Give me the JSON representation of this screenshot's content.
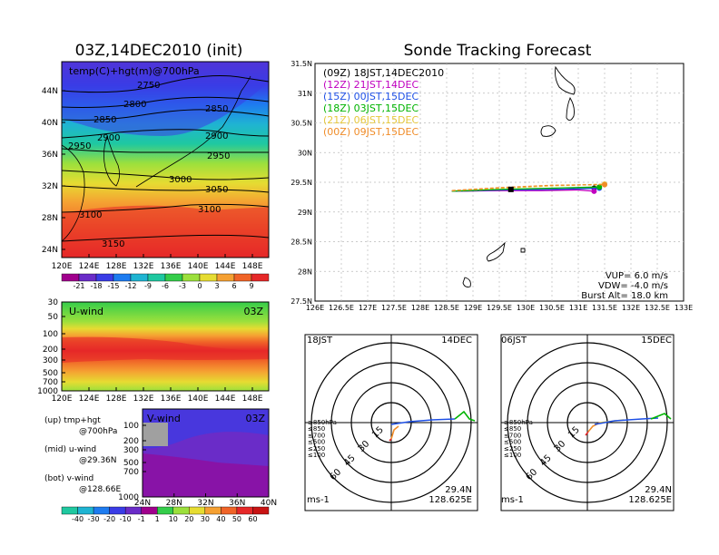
{
  "left": {
    "title": "03Z,14DEC2010 (init)",
    "map": {
      "label": "temp(C)+hgt(m)@700hPa",
      "lat_ticks": [
        "44N",
        "40N",
        "36N",
        "32N",
        "28N",
        "24N"
      ],
      "lon_ticks": [
        "120E",
        "124E",
        "128E",
        "132E",
        "136E",
        "140E",
        "144E",
        "148E"
      ],
      "contour_labels": [
        "2750",
        "2800",
        "2850",
        "2850",
        "2900",
        "2900",
        "2950",
        "2950",
        "3000",
        "3050",
        "3100",
        "3100",
        "3150"
      ],
      "colorbar": [
        "-21",
        "-18",
        "-15",
        "-12",
        "-9",
        "-6",
        "-3",
        "0",
        "3",
        "6",
        "9"
      ],
      "colorbar_colors": [
        "#a0008c",
        "#6a2cc8",
        "#3a3ce6",
        "#1e7cf0",
        "#1fb4d2",
        "#1fc8a0",
        "#34cd4a",
        "#9ce03c",
        "#e6dc32",
        "#f5a032",
        "#f06428",
        "#e62828"
      ]
    },
    "u_wind": {
      "label": "U-wind",
      "time": "03Z",
      "p_ticks": [
        "30",
        "50",
        "100",
        "200",
        "300",
        "500",
        "700",
        "1000"
      ],
      "lon_ticks": [
        "120E",
        "124E",
        "128E",
        "132E",
        "136E",
        "140E",
        "144E",
        "148E"
      ]
    },
    "v_wind": {
      "label": "V-wind",
      "time": "03Z",
      "p_ticks": [
        "100",
        "200",
        "300",
        "500",
        "700",
        "1000"
      ],
      "lat_ticks": [
        "24N",
        "28N",
        "32N",
        "36N",
        "40N"
      ],
      "colorbar": [
        "-40",
        "-30",
        "-20",
        "-10",
        "-1",
        "1",
        "10",
        "20",
        "30",
        "40",
        "50",
        "60"
      ],
      "colorbar_colors": [
        "#1fc8a0",
        "#1fb4d2",
        "#1e7cf0",
        "#3a3ce6",
        "#6a2cc8",
        "#a0008c",
        "#34cd4a",
        "#9ce03c",
        "#e6dc32",
        "#f5a032",
        "#f06428",
        "#e62828",
        "#c81414"
      ]
    },
    "notes": [
      {
        "head": "(up) tmp+hgt",
        "sub": "@700hPa"
      },
      {
        "head": "(mid) u-wind",
        "sub": "@29.36N"
      },
      {
        "head": "(bot) v-wind",
        "sub": "@128.66E"
      }
    ]
  },
  "right": {
    "title": "Sonde Tracking Forecast",
    "lat_ticks": [
      "31.5N",
      "31N",
      "30.5N",
      "30N",
      "29.5N",
      "29N",
      "28.5N",
      "28N",
      "27.5N"
    ],
    "lon_ticks": [
      "126E",
      "126.5E",
      "127E",
      "127.5E",
      "128E",
      "128.5E",
      "129E",
      "129.5E",
      "130E",
      "130.5E",
      "131E",
      "131.5E",
      "132E",
      "132.5E",
      "133E"
    ],
    "legend": [
      {
        "text": "(09Z)  18JST,14DEC2010",
        "color": "#000000"
      },
      {
        "text": "(12Z)  21JST,14DEC",
        "color": "#c000c0"
      },
      {
        "text": "(15Z)  00JST,15DEC",
        "color": "#1e50e6"
      },
      {
        "text": "(18Z)  03JST,15DEC",
        "color": "#00b400"
      },
      {
        "text": "(21Z)  06JST,15DEC",
        "color": "#e6c83c"
      },
      {
        "text": "(00Z)  09JST,15DEC",
        "color": "#f08c28"
      }
    ],
    "params": {
      "vup": "VUP=  6.0  m/s",
      "vdw": "VDW=  -4.0  m/s",
      "burst": "Burst Alt=  18.0  km"
    }
  },
  "chart_data": {
    "type": "line",
    "title": "Sonde Tracking Forecast",
    "xlim": [
      126,
      133
    ],
    "ylim": [
      27.5,
      31.5
    ],
    "series": [
      {
        "name": "(09Z) 18JST,14DEC2010",
        "color": "#000000",
        "x": [
          128.6,
          129.3,
          129.9,
          130.6,
          131.3
        ],
        "y": [
          29.35,
          29.36,
          29.37,
          29.38,
          29.4
        ]
      },
      {
        "name": "(12Z) 21JST,14DEC",
        "color": "#c000c0",
        "x": [
          128.6,
          129.5,
          130.3,
          131.0,
          131.3
        ],
        "y": [
          29.35,
          29.36,
          29.36,
          29.37,
          29.35
        ]
      },
      {
        "name": "(15Z) 00JST,15DEC",
        "color": "#1e50e6",
        "x": [
          128.6,
          129.5,
          130.4,
          131.4
        ],
        "y": [
          29.35,
          29.37,
          29.38,
          29.4
        ]
      },
      {
        "name": "(18Z) 03JST,15DEC",
        "color": "#00b400",
        "x": [
          128.6,
          129.5,
          130.4,
          131.4
        ],
        "y": [
          29.35,
          29.38,
          29.4,
          29.42
        ]
      },
      {
        "name": "(21Z) 06JST,15DEC",
        "color": "#e6c83c",
        "x": [
          128.6,
          129.5,
          130.5,
          131.5
        ],
        "y": [
          29.36,
          29.4,
          29.44,
          29.47
        ]
      },
      {
        "name": "(00Z) 09JST,15DEC",
        "color": "#f08c28",
        "x": [
          128.6,
          129.5,
          130.5,
          131.5
        ],
        "y": [
          29.36,
          29.41,
          29.45,
          29.46
        ]
      }
    ]
  },
  "hodo": [
    {
      "time": "18JST",
      "date": "14DEC",
      "lat": "29.4N",
      "lon": "128.625E",
      "unit": "ms-1",
      "ring_labels": [
        "15",
        "30",
        "45",
        "60"
      ],
      "legend": [
        {
          "text": "≥850hPa",
          "color": "#e62828"
        },
        {
          "text": "≤850",
          "color": "#f08c28"
        },
        {
          "text": "≤700",
          "color": "#e6c83c"
        },
        {
          "text": "≤500",
          "color": "#00b400"
        },
        {
          "text": "≤250",
          "color": "#1fb4d2"
        },
        {
          "text": "≤100",
          "color": "#1e50e6"
        }
      ]
    },
    {
      "time": "06JST",
      "date": "15DEC",
      "lat": "29.4N",
      "lon": "128.625E",
      "unit": "ms-1",
      "ring_labels": [
        "15",
        "30",
        "45",
        "60"
      ],
      "legend": [
        {
          "text": "≥850hPa",
          "color": "#e62828"
        },
        {
          "text": "≤850",
          "color": "#f08c28"
        },
        {
          "text": "≤700",
          "color": "#e6c83c"
        },
        {
          "text": "≤500",
          "color": "#00b400"
        },
        {
          "text": "≤250",
          "color": "#1fb4d2"
        },
        {
          "text": "≤100",
          "color": "#1e50e6"
        }
      ]
    }
  ]
}
